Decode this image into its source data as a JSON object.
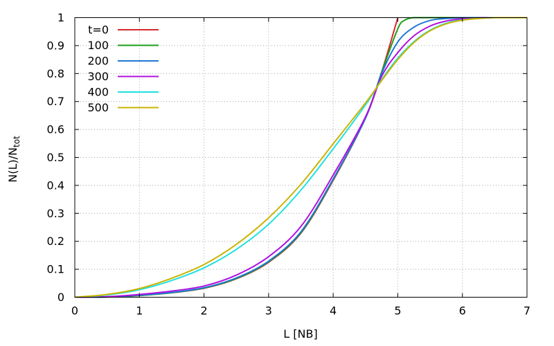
{
  "chart_data": {
    "type": "line",
    "xlabel": "L [NB]",
    "ylabel_main": "N(L)/N",
    "ylabel_sub": "tot",
    "xlim": [
      0,
      7
    ],
    "ylim": [
      0,
      1
    ],
    "xticks": [
      0,
      1,
      2,
      3,
      4,
      5,
      6,
      7
    ],
    "yticks": [
      0,
      0.1,
      0.2,
      0.3,
      0.4,
      0.5,
      0.6,
      0.7,
      0.8,
      0.9,
      1
    ],
    "grid": true,
    "legend_position": "top-left",
    "series": [
      {
        "name": "t=0",
        "color": "#d62728",
        "x": [
          0,
          0.5,
          1,
          1.5,
          2,
          2.5,
          3,
          3.5,
          4,
          4.5,
          4.75,
          5.0
        ],
        "y": [
          0,
          0.001,
          0.006,
          0.016,
          0.032,
          0.066,
          0.125,
          0.229,
          0.418,
          0.641,
          0.805,
          1.0
        ]
      },
      {
        "name": "100",
        "color": "#1a9e1a",
        "x": [
          0,
          0.5,
          1,
          1.5,
          2,
          2.5,
          3,
          3.5,
          4,
          4.5,
          4.75,
          5.0,
          5.1,
          5.25,
          5.5,
          6,
          7
        ],
        "y": [
          0,
          0.001,
          0.006,
          0.016,
          0.033,
          0.067,
          0.127,
          0.231,
          0.421,
          0.643,
          0.805,
          0.96,
          0.99,
          1.0,
          1.0,
          1.0,
          1.0
        ]
      },
      {
        "name": "200",
        "color": "#1f77d4",
        "x": [
          0,
          0.5,
          1,
          1.5,
          2,
          2.5,
          3,
          3.5,
          4,
          4.5,
          4.75,
          5.0,
          5.25,
          5.5,
          5.75,
          6,
          6.5,
          7
        ],
        "y": [
          0,
          0.001,
          0.007,
          0.017,
          0.034,
          0.069,
          0.129,
          0.234,
          0.423,
          0.64,
          0.8,
          0.913,
          0.966,
          0.99,
          0.997,
          1.0,
          1.0,
          1.0
        ]
      },
      {
        "name": "300",
        "color": "#b010e0",
        "x": [
          0,
          0.5,
          1,
          1.5,
          2,
          2.5,
          3,
          3.5,
          4,
          4.5,
          4.75,
          5.0,
          5.25,
          5.5,
          5.75,
          6,
          6.25,
          6.5,
          7
        ],
        "y": [
          0,
          0.002,
          0.01,
          0.022,
          0.04,
          0.079,
          0.145,
          0.253,
          0.437,
          0.645,
          0.79,
          0.875,
          0.935,
          0.97,
          0.988,
          0.996,
          0.999,
          1.0,
          1.0
        ]
      },
      {
        "name": "400",
        "color": "#20e0e0",
        "x": [
          0,
          0.5,
          1,
          1.5,
          2,
          2.5,
          3,
          3.5,
          4,
          4.5,
          4.75,
          5.0,
          5.25,
          5.5,
          5.75,
          6,
          6.5,
          7
        ],
        "y": [
          0,
          0.008,
          0.027,
          0.06,
          0.105,
          0.171,
          0.261,
          0.383,
          0.531,
          0.688,
          0.778,
          0.855,
          0.914,
          0.955,
          0.98,
          0.992,
          1.0,
          1.0
        ]
      },
      {
        "name": "500",
        "color": "#c8b400",
        "x": [
          0,
          0.5,
          1,
          1.5,
          2,
          2.5,
          3,
          3.5,
          4,
          4.5,
          4.75,
          5.0,
          5.25,
          5.5,
          5.75,
          6,
          6.25,
          6.5,
          7
        ],
        "y": [
          0,
          0.01,
          0.031,
          0.068,
          0.117,
          0.189,
          0.284,
          0.404,
          0.549,
          0.695,
          0.775,
          0.85,
          0.911,
          0.953,
          0.978,
          0.991,
          0.997,
          1.0,
          1.0
        ]
      }
    ]
  }
}
